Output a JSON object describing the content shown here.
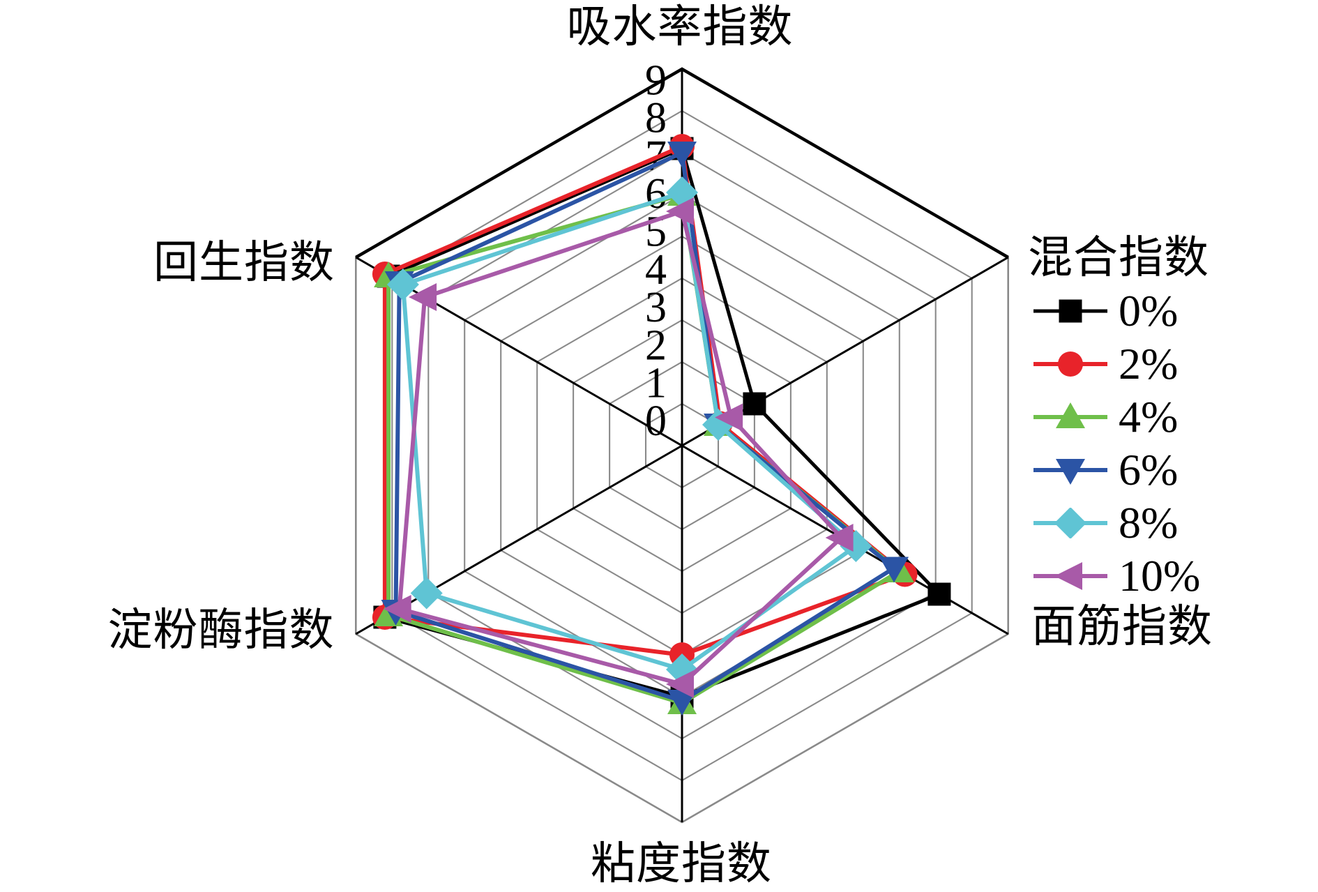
{
  "chart_data": {
    "type": "radar",
    "axes": [
      "吸水率指数",
      "混合指数",
      "面筋指数",
      "粘度指数",
      "淀粉酶指数",
      "回生指数"
    ],
    "tick_labels": [
      "0",
      "1",
      "2",
      "3",
      "4",
      "5",
      "6",
      "7",
      "8",
      "9"
    ],
    "value_range": [
      0,
      9
    ],
    "grid": {
      "shape": "hexagon",
      "rings": 9,
      "ring_color": "#8a8a8a",
      "axis_color": "#000000",
      "outer_top_edge_color": "#000000"
    },
    "series": [
      {
        "name": "0%",
        "color": "#000000",
        "marker": "square",
        "values": [
          7.1,
          2.0,
          7.1,
          6.0,
          8.2,
          8.1
        ]
      },
      {
        "name": "2%",
        "color": "#e8232a",
        "marker": "circle",
        "values": [
          7.15,
          1.05,
          6.15,
          5.0,
          8.2,
          8.2
        ]
      },
      {
        "name": "4%",
        "color": "#6fbf4a",
        "marker": "triangle-up",
        "values": [
          6.0,
          1.0,
          6.0,
          6.15,
          8.1,
          8.1
        ]
      },
      {
        "name": "6%",
        "color": "#2b54a5",
        "marker": "triangle-down",
        "values": [
          7.0,
          1.0,
          5.85,
          6.1,
          7.9,
          7.8
        ]
      },
      {
        "name": "8%",
        "color": "#5fc4d4",
        "marker": "diamond",
        "values": [
          6.05,
          1.0,
          4.8,
          5.35,
          7.05,
          7.7
        ]
      },
      {
        "name": "10%",
        "color": "#a85aa8",
        "marker": "triangle-left",
        "values": [
          5.6,
          1.35,
          4.4,
          5.7,
          7.8,
          7.1
        ]
      }
    ],
    "legend": {
      "position": "right",
      "items": [
        "0%",
        "2%",
        "4%",
        "6%",
        "8%",
        "10%"
      ]
    }
  }
}
